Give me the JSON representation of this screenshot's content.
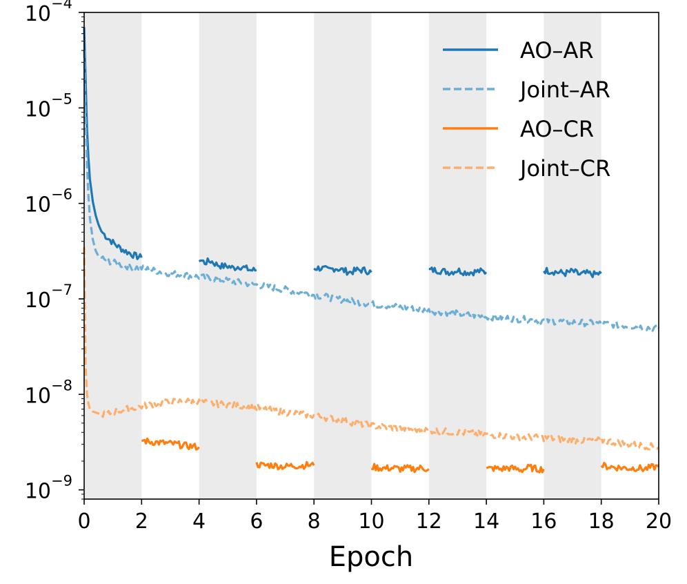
{
  "chart_data": {
    "type": "line",
    "title": "",
    "xlabel": "Epoch",
    "ylabel": "",
    "xlim": [
      0,
      20
    ],
    "ylim": [
      8e-10,
      0.0001
    ],
    "yscale": "log",
    "x_ticks": [
      0,
      2,
      4,
      6,
      8,
      10,
      12,
      14,
      16,
      18,
      20
    ],
    "y_ticks": [
      {
        "value": 1e-09,
        "base": "10",
        "exp": "−9"
      },
      {
        "value": 1e-08,
        "base": "10",
        "exp": "−8"
      },
      {
        "value": 1e-07,
        "base": "10",
        "exp": "−7"
      },
      {
        "value": 1e-06,
        "base": "10",
        "exp": "−6"
      },
      {
        "value": 1e-05,
        "base": "10",
        "exp": "−5"
      },
      {
        "value": 0.0001,
        "base": "10",
        "exp": "−4"
      }
    ],
    "shaded_bands": [
      [
        0,
        2
      ],
      [
        4,
        6
      ],
      [
        8,
        10
      ],
      [
        12,
        14
      ],
      [
        16,
        18
      ]
    ],
    "shade_color": "#ebebeb",
    "legend_position": "top-right",
    "series": [
      {
        "name": "AO–AR",
        "color": "#1f77b4",
        "style": "solid",
        "segments": [
          {
            "x": [
              0.0,
              0.05,
              0.1,
              0.15,
              0.2,
              0.3,
              0.4,
              0.5,
              0.6,
              0.8,
              1.0,
              1.2,
              1.4,
              1.6,
              1.8,
              2.0
            ],
            "y": [
              7e-05,
              2e-05,
              6e-06,
              3e-06,
              1.8e-06,
              1.05e-06,
              7.5e-07,
              6e-07,
              5.1e-07,
              4.4e-07,
              3.9e-07,
              3.5e-07,
              3.2e-07,
              3e-07,
              2.8e-07,
              2.7e-07
            ]
          },
          {
            "x": [
              4.0,
              4.2,
              4.4,
              4.6,
              4.8,
              5.0,
              5.2,
              5.4,
              5.6,
              5.8,
              6.0
            ],
            "y": [
              2.6e-07,
              2.4e-07,
              2.5e-07,
              2.3e-07,
              2.2e-07,
              2.2e-07,
              2.1e-07,
              2.2e-07,
              2.1e-07,
              2e-07,
              2e-07
            ]
          },
          {
            "x": [
              8.0,
              8.25,
              8.5,
              8.75,
              9.0,
              9.25,
              9.5,
              9.75,
              10.0
            ],
            "y": [
              2.1e-07,
              2.1e-07,
              2e-07,
              2.1e-07,
              2e-07,
              1.9e-07,
              2e-07,
              2e-07,
              1.9e-07
            ]
          },
          {
            "x": [
              12.0,
              12.25,
              12.5,
              12.75,
              13.0,
              13.25,
              13.5,
              13.75,
              14.0
            ],
            "y": [
              2e-07,
              2e-07,
              1.95e-07,
              1.9e-07,
              2e-07,
              1.9e-07,
              1.9e-07,
              1.95e-07,
              1.9e-07
            ]
          },
          {
            "x": [
              16.0,
              16.25,
              16.5,
              16.75,
              17.0,
              17.25,
              17.5,
              17.75,
              18.0
            ],
            "y": [
              2e-07,
              1.95e-07,
              1.9e-07,
              1.85e-07,
              1.95e-07,
              1.8e-07,
              1.85e-07,
              1.8e-07,
              1.85e-07
            ]
          }
        ]
      },
      {
        "name": "Joint–AR",
        "color": "#6baed6",
        "style": "dashed",
        "segments": [
          {
            "x": [
              0.0,
              0.05,
              0.1,
              0.15,
              0.2,
              0.3,
              0.4,
              0.5,
              0.7,
              1.0,
              1.5,
              2.0,
              3.0,
              4.0,
              5.0,
              6.0,
              7.0,
              8.0,
              9.0,
              10.0,
              11.0,
              12.0,
              13.0,
              14.0,
              15.0,
              16.0,
              17.0,
              18.0,
              19.0,
              20.0
            ],
            "y": [
              4e-05,
              8e-06,
              2.5e-06,
              1.2e-06,
              7e-07,
              4.2e-07,
              3.2e-07,
              2.8e-07,
              2.6e-07,
              2.4e-07,
              2.2e-07,
              2.1e-07,
              1.85e-07,
              1.7e-07,
              1.55e-07,
              1.4e-07,
              1.25e-07,
              1.1e-07,
              9.8e-08,
              8.8e-08,
              8.2e-08,
              7.5e-08,
              7e-08,
              6.5e-08,
              6.2e-08,
              5.9e-08,
              5.7e-08,
              5.5e-08,
              5.2e-08,
              4.9e-08
            ]
          }
        ]
      },
      {
        "name": "AO–CR",
        "color": "#ff7f0e",
        "style": "solid",
        "segments": [
          {
            "x": [
              2.0,
              2.25,
              2.5,
              2.75,
              3.0,
              3.25,
              3.5,
              3.75,
              4.0
            ],
            "y": [
              3.3e-09,
              3.2e-09,
              3.15e-09,
              3.1e-09,
              3.05e-09,
              3e-09,
              2.9e-09,
              2.85e-09,
              2.8e-09
            ]
          },
          {
            "x": [
              6.0,
              6.25,
              6.5,
              6.75,
              7.0,
              7.25,
              7.5,
              7.75,
              8.0
            ],
            "y": [
              1.85e-09,
              1.8e-09,
              1.82e-09,
              1.78e-09,
              1.75e-09,
              1.8e-09,
              1.78e-09,
              1.82e-09,
              1.8e-09
            ]
          },
          {
            "x": [
              10.0,
              10.25,
              10.5,
              10.75,
              11.0,
              11.25,
              11.5,
              11.75,
              12.0
            ],
            "y": [
              1.75e-09,
              1.7e-09,
              1.68e-09,
              1.7e-09,
              1.65e-09,
              1.68e-09,
              1.66e-09,
              1.7e-09,
              1.65e-09
            ]
          },
          {
            "x": [
              14.0,
              14.25,
              14.5,
              14.75,
              15.0,
              15.25,
              15.5,
              15.75,
              16.0
            ],
            "y": [
              1.65e-09,
              1.68e-09,
              1.65e-09,
              1.7e-09,
              1.66e-09,
              1.62e-09,
              1.72e-09,
              1.65e-09,
              1.65e-09
            ]
          },
          {
            "x": [
              18.0,
              18.25,
              18.5,
              18.75,
              19.0,
              19.25,
              19.5,
              19.75,
              20.0
            ],
            "y": [
              1.8e-09,
              1.75e-09,
              1.72e-09,
              1.7e-09,
              1.68e-09,
              1.7e-09,
              1.65e-09,
              1.72e-09,
              1.75e-09
            ]
          }
        ]
      },
      {
        "name": "Joint–CR",
        "color": "#fdae6b",
        "style": "dashed",
        "segments": [
          {
            "x": [
              0.0,
              0.05,
              0.1,
              0.15,
              0.2,
              0.3,
              0.5,
              0.8,
              1.0,
              1.5,
              2.0,
              2.5,
              3.0,
              3.5,
              4.0,
              4.5,
              5.0,
              5.5,
              6.0,
              7.0,
              8.0,
              9.0,
              10.0,
              11.0,
              12.0,
              13.0,
              14.0,
              15.0,
              16.0,
              17.0,
              18.0,
              19.0,
              20.0
            ],
            "y": [
              3.5e-07,
              2e-08,
              1e-08,
              8e-09,
              7e-09,
              6.6e-09,
              6.3e-09,
              6.2e-09,
              6.5e-09,
              7e-09,
              7.5e-09,
              8e-09,
              8.3e-09,
              8.5e-09,
              8.3e-09,
              8e-09,
              7.8e-09,
              7.5e-09,
              7.2e-09,
              6.5e-09,
              6e-09,
              5.3e-09,
              4.7e-09,
              4.4e-09,
              4.2e-09,
              4e-09,
              3.8e-09,
              3.6e-09,
              3.5e-09,
              3.3e-09,
              3.3e-09,
              3e-09,
              2.8e-09
            ]
          }
        ]
      }
    ]
  }
}
